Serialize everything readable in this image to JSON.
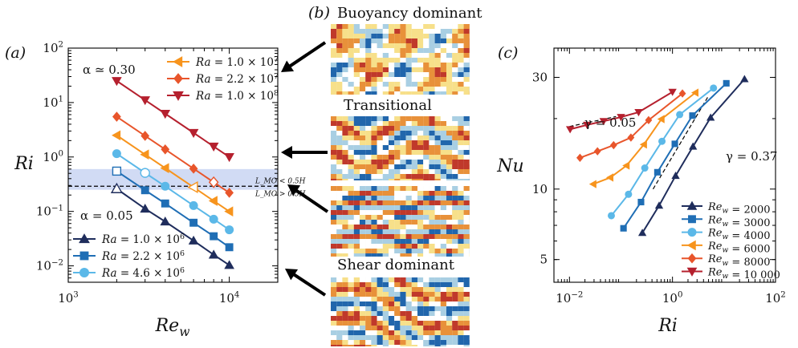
{
  "panel_labels": {
    "a": "(a)",
    "b": "(b)",
    "c": "(c)"
  },
  "panel_b": {
    "labels": [
      "Buoyancy dominant",
      "Transitional",
      "Shear dominant"
    ],
    "field_colors": [
      "#c0392b",
      "#e8913a",
      "#f7e08a",
      "#ffffff",
      "#a9cfe3",
      "#2166ac"
    ]
  },
  "colors": {
    "navy": "#1f2d5c",
    "blue": "#1f6eb5",
    "lightblue": "#5bb8e8",
    "orange": "#f7941d",
    "redorange": "#e8552b",
    "darkred": "#b5202e",
    "band": "#c9d5f2"
  },
  "chart_data": [
    {
      "id": "a",
      "type": "line",
      "x_scale": "log",
      "y_scale": "log",
      "xlabel": "Re_w",
      "ylabel": "Ri",
      "xlim": [
        1000,
        20000
      ],
      "ylim": [
        0.005,
        100
      ],
      "x_ticks": [
        {
          "v": 1000,
          "m": "10",
          "e": "3"
        },
        {
          "v": 10000,
          "m": "10",
          "e": "4"
        }
      ],
      "y_ticks": [
        {
          "v": 0.01,
          "m": "10",
          "e": "−2"
        },
        {
          "v": 0.1,
          "m": "10",
          "e": "−1"
        },
        {
          "v": 1,
          "m": "10",
          "e": "0"
        },
        {
          "v": 10,
          "m": "10",
          "e": "1"
        },
        {
          "v": 100,
          "m": "10",
          "e": "2"
        }
      ],
      "band": [
        0.25,
        0.6
      ],
      "threshold_y": 0.29,
      "threshold_labels": [
        "L_MO < 0.5H",
        "L_MO > 0.5H"
      ],
      "annotations": [
        "α ≃ 0.30",
        "α = 0.05"
      ],
      "series": [
        {
          "name": "Ra = 1.0 × 10^6",
          "color": "navy",
          "marker": "tri_up",
          "x": [
            2000,
            3000,
            4000,
            6000,
            8000,
            10000
          ],
          "y": [
            0.26,
            0.112,
            0.065,
            0.029,
            0.016,
            0.0103
          ],
          "hollow_index": 0
        },
        {
          "name": "Ra = 2.2 × 10^6",
          "color": "blue",
          "marker": "square",
          "x": [
            2000,
            3000,
            4000,
            6000,
            8000,
            10000
          ],
          "y": [
            0.55,
            0.245,
            0.14,
            0.062,
            0.035,
            0.022
          ],
          "hollow_index": 0
        },
        {
          "name": "Ra = 4.6 × 10^6",
          "color": "lightblue",
          "marker": "circle",
          "x": [
            2000,
            3000,
            4000,
            6000,
            8000,
            10000
          ],
          "y": [
            1.15,
            0.51,
            0.29,
            0.128,
            0.072,
            0.046
          ],
          "hollow_index": 1
        },
        {
          "name": "Ra = 1.0 × 10^7",
          "color": "orange",
          "marker": "tri_left",
          "x": [
            2000,
            3000,
            4000,
            6000,
            8000,
            10000
          ],
          "y": [
            2.5,
            1.11,
            0.625,
            0.278,
            0.156,
            0.1
          ],
          "hollow_index": 3
        },
        {
          "name": "Ra = 2.2 × 10^7",
          "color": "redorange",
          "marker": "diamond",
          "x": [
            2000,
            3000,
            4000,
            6000,
            8000,
            10000
          ],
          "y": [
            5.5,
            2.44,
            1.38,
            0.61,
            0.344,
            0.22
          ],
          "hollow_index": 4
        },
        {
          "name": "Ra = 1.0 × 10^8",
          "color": "darkred",
          "marker": "tri_down",
          "x": [
            2000,
            3000,
            4000,
            6000,
            8000,
            10000
          ],
          "y": [
            25,
            11.1,
            6.25,
            2.78,
            1.56,
            1.0
          ],
          "hollow_index": -1
        }
      ]
    },
    {
      "id": "c",
      "type": "line",
      "x_scale": "log",
      "y_scale": "log",
      "xlabel": "Ri",
      "ylabel": "Nu",
      "xlim": [
        0.005,
        100
      ],
      "ylim": [
        4,
        40
      ],
      "x_ticks": [
        {
          "v": 0.01,
          "m": "10",
          "e": "−2"
        },
        {
          "v": 1,
          "m": "10",
          "e": "0"
        },
        {
          "v": 100,
          "m": "10",
          "e": "2"
        }
      ],
      "y_ticks": [
        {
          "v": 5,
          "t": "5"
        },
        {
          "v": 10,
          "t": "10"
        },
        {
          "v": 30,
          "t": "30"
        }
      ],
      "guides": [
        {
          "label": "γ = 0.05",
          "x": [
            0.01,
            0.08
          ],
          "y": [
            18.5,
            20.4
          ]
        },
        {
          "label": "γ = 0.37",
          "x": [
            0.42,
            5.0
          ],
          "y": [
            10.0,
            25.0
          ]
        }
      ],
      "series": [
        {
          "name": "Re_w = 2000",
          "color": "navy",
          "marker": "tri_up",
          "x": [
            0.26,
            0.55,
            1.15,
            2.5,
            5.5,
            25
          ],
          "y": [
            6.5,
            8.5,
            11.4,
            15.2,
            20.2,
            29.5
          ]
        },
        {
          "name": "Re_w = 3000",
          "color": "blue",
          "marker": "square",
          "x": [
            0.112,
            0.245,
            0.51,
            1.11,
            2.44,
            11.1
          ],
          "y": [
            6.8,
            8.8,
            11.8,
            15.6,
            20.6,
            28.3
          ]
        },
        {
          "name": "Re_w = 4000",
          "color": "lightblue",
          "marker": "circle",
          "x": [
            0.065,
            0.14,
            0.29,
            0.625,
            1.38,
            6.25
          ],
          "y": [
            7.7,
            9.5,
            12.3,
            16.0,
            20.8,
            27.0
          ]
        },
        {
          "name": "Re_w = 6000",
          "color": "orange",
          "marker": "tri_left",
          "x": [
            0.029,
            0.062,
            0.128,
            0.278,
            0.61,
            2.78
          ],
          "y": [
            10.5,
            11.2,
            12.6,
            15.5,
            19.9,
            25.8
          ]
        },
        {
          "name": "Re_w = 8000",
          "color": "redorange",
          "marker": "diamond",
          "x": [
            0.016,
            0.035,
            0.072,
            0.156,
            0.344,
            1.56
          ],
          "y": [
            13.6,
            14.5,
            15.4,
            16.6,
            19.7,
            25.6
          ]
        },
        {
          "name": "Re_w = 10 000",
          "color": "darkred",
          "marker": "tri_down",
          "x": [
            0.0103,
            0.022,
            0.046,
            0.1,
            0.22,
            1.0
          ],
          "y": [
            18.0,
            18.8,
            19.5,
            20.3,
            21.3,
            26.0
          ]
        }
      ]
    }
  ]
}
